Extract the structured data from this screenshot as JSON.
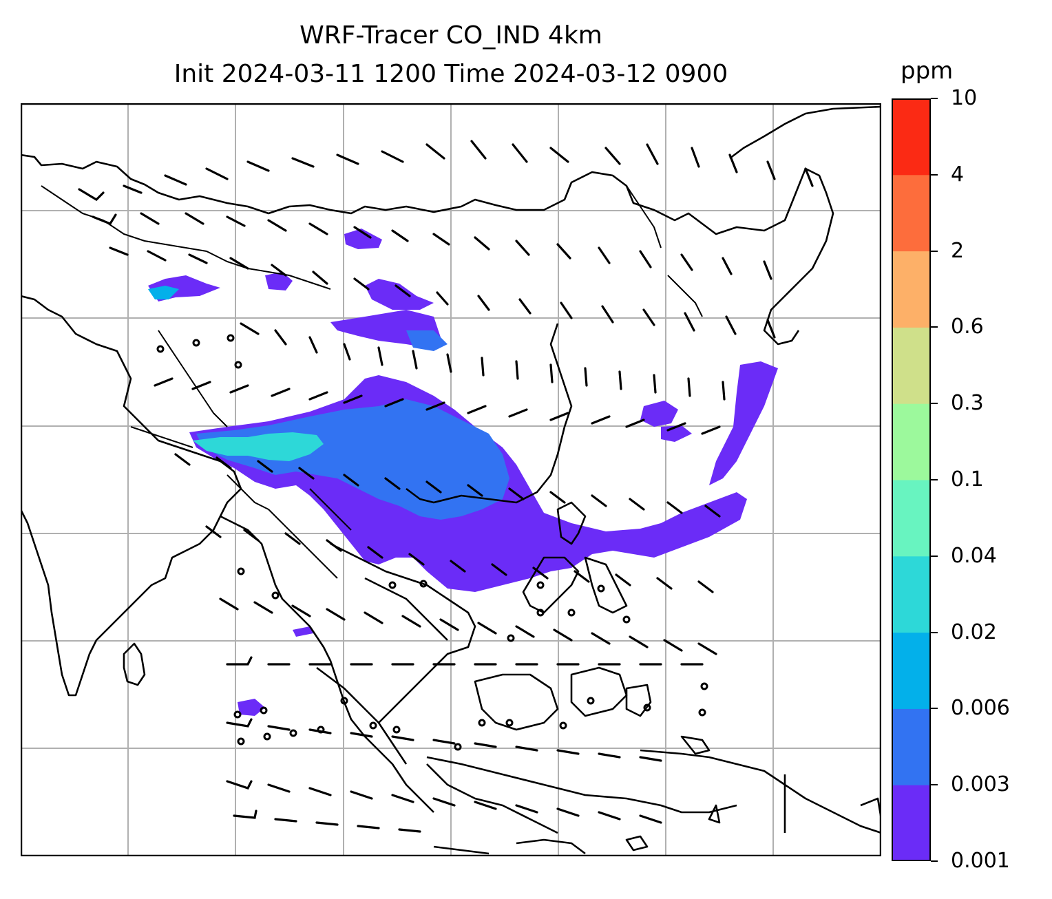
{
  "title": {
    "line1": "WRF-Tracer CO_IND 4km",
    "line2": "Init 2024-03-11 1200 Time 2024-03-12 0900"
  },
  "colorbar": {
    "units": "ppm",
    "levels": [
      "0.001",
      "0.003",
      "0.006",
      "0.02",
      "0.04",
      "0.1",
      "0.3",
      "0.6",
      "2",
      "4",
      "10"
    ],
    "colors": [
      "#6b2cf7",
      "#3273f2",
      "#03b0ea",
      "#2dd8d8",
      "#68f4c0",
      "#9cf99c",
      "#cfe08a",
      "#fdb068",
      "#fd6d3c",
      "#fb2a14"
    ]
  },
  "map": {
    "projection": "lambert conformal",
    "gridlines": true,
    "coastlines": true,
    "borders": true,
    "field": "CO tracer concentration (filled contours)",
    "overlay": "wind barbs",
    "plume_color_main": "#6b2cf7",
    "plume_color_core": "#3273f2",
    "plume_color_peak": "#2dd8d8"
  }
}
